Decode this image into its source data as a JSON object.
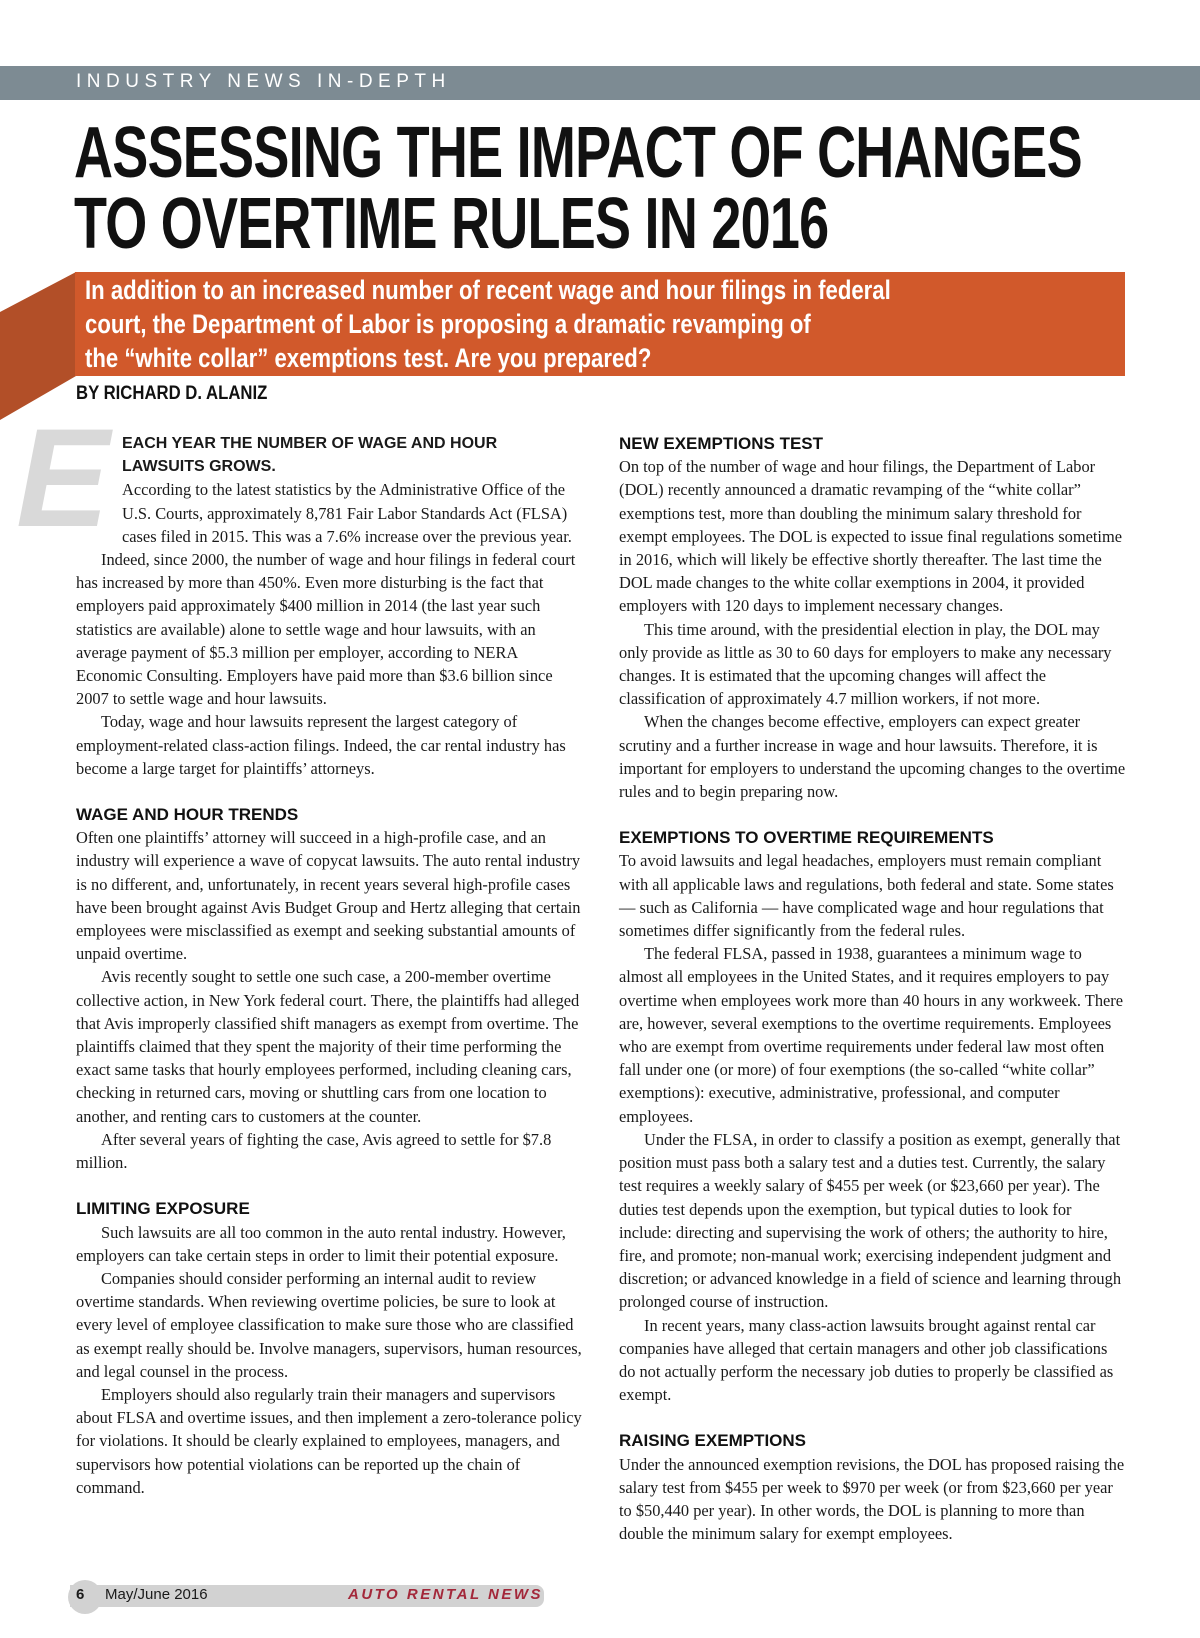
{
  "section_label": "INDUSTRY NEWS IN-DEPTH",
  "title_lines": [
    "ASSESSING THE IMPACT OF CHANGES",
    "TO OVERTIME RULES IN 2016"
  ],
  "deck_lines": [
    "In addition to an increased number of recent wage and hour filings in federal",
    "court, the Department of Labor is proposing a dramatic revamping of",
    "the “white collar” exemptions test. Are you prepared?"
  ],
  "byline": "BY RICHARD D. ALANIZ",
  "drop_cap": "E",
  "accent_color": "#d1592b",
  "left_column": {
    "lead_in": "EACH YEAR THE NUMBER OF WAGE AND HOUR LAWSUITS GROWS.",
    "intro": [
      "According to the latest statistics by the Administrative Office of the U.S. Courts, approximately 8,781 Fair Labor Standards Act (FLSA) cases filed in 2015. This was a 7.6% increase over the previous year.",
      "Indeed, since 2000, the number of wage and hour filings in federal court has increased by more than 450%. Even more disturbing is the fact that employers paid approximately $400 million in 2014 (the last year such statistics are available) alone to settle wage and hour lawsuits, with an average payment of $5.3 million per employer, according to NERA Economic Consulting. Employers have paid more than $3.6 billion since 2007 to settle wage and hour lawsuits.",
      "Today, wage and hour lawsuits represent the largest category of employment-related class-action filings. Indeed, the car rental industry has become a large target for plaintiffs’ attorneys."
    ],
    "sections": [
      {
        "heading": "WAGE AND HOUR TRENDS",
        "paragraphs": [
          "Often one plaintiffs’ attorney will succeed in a high-profile case, and an industry will experience a wave of copycat lawsuits. The auto rental industry is no different, and, unfortunately, in recent years several high-profile cases have been brought against Avis Budget Group and Hertz alleging that certain employees were misclassified as exempt and seeking substantial amounts of unpaid overtime.",
          "Avis recently sought to settle one such case, a 200-member overtime collective action, in New York federal court. There, the plaintiffs had alleged that Avis improperly classified shift managers as exempt from overtime. The plaintiffs claimed that they spent the majority of their time performing the exact same tasks that hourly employees performed, including cleaning cars, checking in returned cars, moving or shuttling cars from one location to another, and renting cars to customers at the counter.",
          "After several years of fighting the case, Avis agreed to settle for $7.8 million."
        ]
      },
      {
        "heading": "LIMITING EXPOSURE",
        "paragraphs": [
          "Such lawsuits are all too common in the auto rental industry. However, employers can take certain steps in order to limit their potential exposure.",
          "Companies should consider performing an internal audit to review overtime standards. When reviewing overtime policies, be sure to look at every level of employee classification to make sure those who are classified as exempt really should be. Involve managers, supervisors, human resources, and legal counsel in the process.",
          "Employers should also regularly train their managers and supervisors about FLSA and overtime issues, and then implement a zero-tolerance policy for violations. It should be clearly explained to employees, managers, and supervisors how potential violations can be reported up the chain of command."
        ]
      }
    ]
  },
  "right_column": {
    "sections": [
      {
        "heading": "NEW EXEMPTIONS TEST",
        "paragraphs": [
          "On top of the number of wage and hour filings, the Department of Labor (DOL) recently announced a dramatic revamping of the “white collar” exemptions test, more than doubling the minimum salary threshold for exempt employees. The DOL is expected to issue final regulations sometime in 2016, which will likely be effective shortly thereafter. The last time the DOL made changes to the white collar exemptions in 2004, it provided employers with 120 days to implement necessary changes.",
          "This time around, with the presidential election in play, the DOL may only provide as little as 30 to 60 days for employers to make any necessary changes. It is estimated that the upcoming changes will affect the classification of approximately 4.7 million workers, if not more.",
          "When the changes become effective, employers can expect greater scrutiny and a further increase in wage and hour lawsuits. Therefore, it is important for employers to understand the upcoming changes to the overtime rules and to begin preparing now."
        ]
      },
      {
        "heading": "EXEMPTIONS TO OVERTIME REQUIREMENTS",
        "paragraphs": [
          "To avoid lawsuits and legal headaches, employers must remain compliant with all applicable laws and regulations, both federal and state. Some states — such as California — have complicated wage and hour regulations that sometimes differ significantly from the federal rules.",
          "The federal FLSA, passed in 1938, guarantees a minimum wage to almost all employees in the United States, and it requires employers to pay overtime when employees work more than 40 hours in any workweek. There are, however, several exemptions to the overtime requirements. Employees who are exempt from overtime requirements under federal law most often fall under one (or more) of four exemptions (the so-called “white collar” exemptions): executive, administrative, professional, and computer employees.",
          "Under the FLSA, in order to classify a position as exempt, generally that position must pass both a salary test and a duties test. Currently, the salary test requires a weekly salary of $455 per week (or $23,660 per year). The duties test depends upon the exemption, but typical duties to look for include: directing and supervising the work of others; the authority to hire, fire, and promote; non-manual work; exercising independent judgment and discretion; or advanced knowledge in a field of science and learning through prolonged course of instruction.",
          "In recent years, many class-action lawsuits brought against rental car companies have alleged that certain managers and other job classifications do not actually perform the necessary job duties to properly be classified as exempt."
        ]
      },
      {
        "heading": "RAISING EXEMPTIONS",
        "paragraphs": [
          "Under the announced exemption revisions, the DOL has proposed raising the salary test from $455 per week to $970 per week (or from $23,660 per year to $50,440 per year). In other words, the DOL is planning to more than double the minimum salary for exempt employees."
        ]
      }
    ]
  },
  "footer": {
    "page_number": "6",
    "issue": "May/June 2016",
    "publication": "AUTO RENTAL NEWS"
  }
}
